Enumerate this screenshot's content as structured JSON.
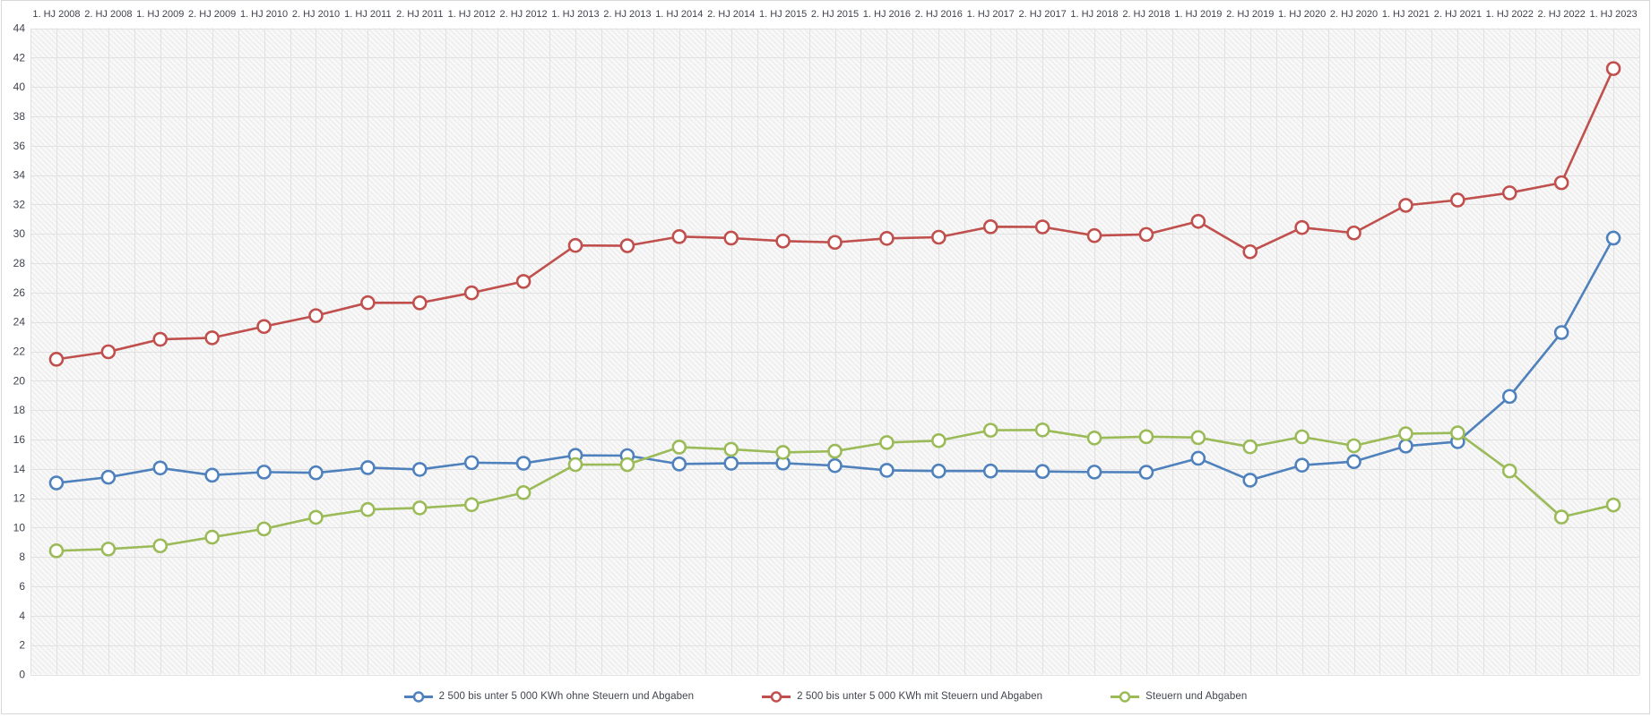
{
  "chart_data": {
    "type": "line",
    "title": "",
    "xlabel": "",
    "ylabel": "",
    "unit_hint": "ct/kWh",
    "x_labels": [
      "1. HJ 2008",
      "2. HJ 2008",
      "1. HJ 2009",
      "2. HJ 2009",
      "1. HJ 2010",
      "2. HJ 2010",
      "1. HJ 2011",
      "2. HJ 2011",
      "1. HJ 2012",
      "2. HJ 2012",
      "1. HJ 2013",
      "2. HJ 2013",
      "1. HJ 2014",
      "2. HJ 2014",
      "1. HJ 2015",
      "2. HJ 2015",
      "1. HJ 2016",
      "2. HJ 2016",
      "1. HJ 2017",
      "2. HJ 2017",
      "1. HJ 2018",
      "2. HJ 2018",
      "1. HJ 2019",
      "2. HJ 2019",
      "1. HJ 2020",
      "2. HJ 2020",
      "1. HJ 2021",
      "2. HJ 2021",
      "1. HJ 2022",
      "2. HJ 2022",
      "1. HJ 2023"
    ],
    "y_ticks": [
      0,
      2,
      4,
      6,
      8,
      10,
      12,
      14,
      16,
      18,
      20,
      22,
      24,
      26,
      28,
      30,
      32,
      34,
      36,
      38,
      40,
      42,
      44
    ],
    "ylim": [
      0,
      44
    ],
    "grid": true,
    "x_axis_position": "top",
    "legend_position": "bottom",
    "series": [
      {
        "name": "2 500 bis unter 5 000 KWh ohne Steuern und Abgaben",
        "color": "#4f81bd",
        "values": [
          13.04,
          13.43,
          14.06,
          13.57,
          13.78,
          13.73,
          14.08,
          13.96,
          14.42,
          14.38,
          14.92,
          14.9,
          14.33,
          14.38,
          14.39,
          14.22,
          13.9,
          13.85,
          13.85,
          13.82,
          13.78,
          13.77,
          14.72,
          13.23,
          14.25,
          14.49,
          15.55,
          15.85,
          18.93,
          23.28,
          29.71
        ]
      },
      {
        "name": "2 500 bis unter 5 000 KWh mit Steuern und Abgaben",
        "color": "#c0504d",
        "values": [
          21.46,
          21.97,
          22.82,
          22.92,
          23.69,
          24.43,
          25.31,
          25.3,
          25.98,
          26.76,
          29.21,
          29.19,
          29.81,
          29.71,
          29.51,
          29.42,
          29.69,
          29.77,
          30.48,
          30.47,
          29.88,
          29.96,
          30.85,
          28.78,
          30.43,
          30.06,
          31.94,
          32.3,
          32.79,
          33.48,
          41.25
        ]
      },
      {
        "name": "Steuern und Abgaben",
        "color": "#9bbb59",
        "values": [
          8.42,
          8.54,
          8.76,
          9.35,
          9.91,
          10.7,
          11.23,
          11.34,
          11.56,
          12.38,
          14.29,
          14.29,
          15.48,
          15.33,
          15.12,
          15.2,
          15.79,
          15.92,
          16.63,
          16.65,
          16.1,
          16.19,
          16.13,
          15.5,
          16.18,
          15.57,
          16.39,
          16.45,
          13.86,
          10.72,
          11.54
        ]
      }
    ],
    "style": {
      "plot_bg": "#f8f8f8",
      "hatch_line": "#e9e9e9",
      "grid_color": "#e1e1e1",
      "marker_fill": "#ffffff",
      "text_color": "#41444e",
      "frame_border": "#d8d8d8"
    }
  }
}
